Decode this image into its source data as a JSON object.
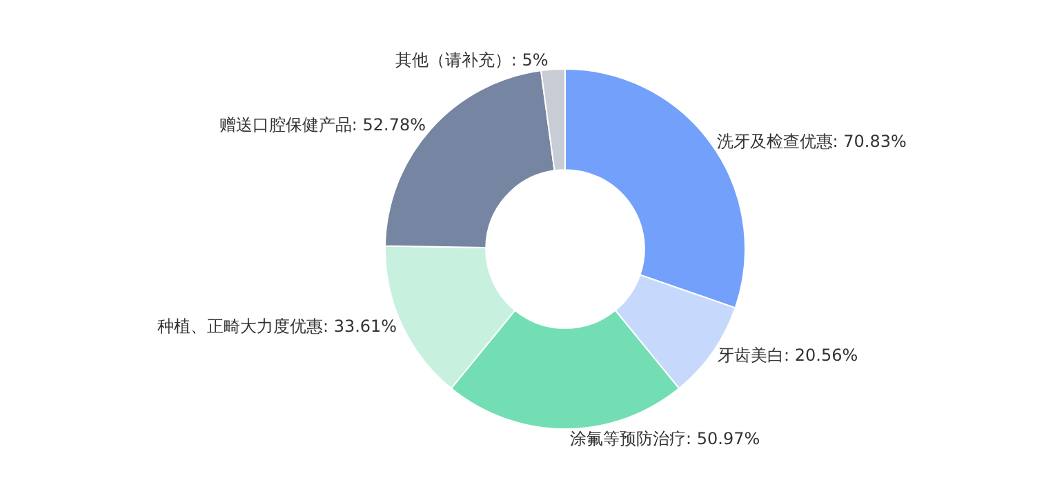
{
  "chart_data": {
    "type": "donut",
    "categories": [
      "洗牙及检查优惠",
      "牙齿美白",
      "涂氟等预防治疗",
      "种植、正畸大力度优惠",
      "赠送口腔保健产品",
      "其他（请补充）"
    ],
    "values": [
      70.83,
      20.56,
      50.97,
      33.61,
      52.78,
      5
    ],
    "value_labels": [
      "70.83%",
      "20.56%",
      "50.97%",
      "33.61%",
      "52.78%",
      "5%"
    ],
    "colors": [
      "#73a0fa",
      "#c6d9fc",
      "#73deb3",
      "#c7f0df",
      "#7585a2",
      "#c8ccd4"
    ],
    "legend": false
  }
}
